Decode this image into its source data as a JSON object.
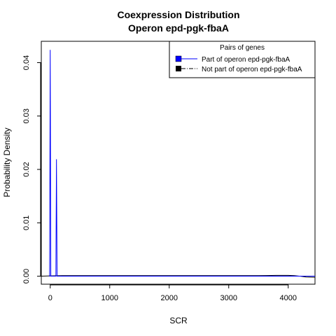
{
  "chart_data": {
    "type": "line",
    "title": "Coexpression Distribution",
    "subtitle": "Operon epd-pgk-fbaA",
    "xlabel": "SCR",
    "ylabel": "Probability Density",
    "xlim": [
      -150,
      4450
    ],
    "ylim": [
      -0.0015,
      0.044
    ],
    "xticks": [
      0,
      1000,
      2000,
      3000,
      4000
    ],
    "yticks": [
      0.0,
      0.01,
      0.02,
      0.03,
      0.04
    ],
    "xtick_labels": [
      "0",
      "1000",
      "2000",
      "3000",
      "4000"
    ],
    "ytick_labels": [
      "0.00",
      "0.01",
      "0.02",
      "0.03",
      "0.04"
    ],
    "legend": {
      "title": "Pairs of genes",
      "position": "top-right",
      "entries": [
        {
          "label": "Part of operon epd-pgk-fbaA",
          "color": "#0000ff",
          "line": "solid"
        },
        {
          "label": "Not part of operon epd-pgk-fbaA",
          "color": "#000000",
          "line": "dashdot"
        }
      ]
    },
    "series": [
      {
        "name": "Part of operon epd-pgk-fbaA",
        "color": "#0000ff",
        "x": [
          -20,
          -10,
          0,
          10,
          20,
          40,
          60,
          80,
          95,
          105,
          115,
          130,
          4450
        ],
        "y": [
          0.0,
          0.0,
          0.0424,
          0.0,
          0.0,
          0.0,
          0.0,
          0.0,
          0.0,
          0.0219,
          0.0,
          0.0,
          0.0
        ]
      },
      {
        "name": "Not part of operon epd-pgk-fbaA",
        "color": "#000000",
        "x": [
          -150,
          0,
          200,
          500,
          1000,
          1500,
          2000,
          2500,
          3000,
          3500,
          3800,
          4000,
          4100,
          4200,
          4300,
          4450
        ],
        "y": [
          0.0,
          5e-05,
          0.0001,
          0.0001,
          0.0001,
          0.0001,
          0.0001,
          0.0001,
          0.0001,
          0.0001,
          0.00015,
          0.00015,
          0.0001,
          0.0,
          -0.00015,
          -0.0002
        ]
      }
    ]
  }
}
